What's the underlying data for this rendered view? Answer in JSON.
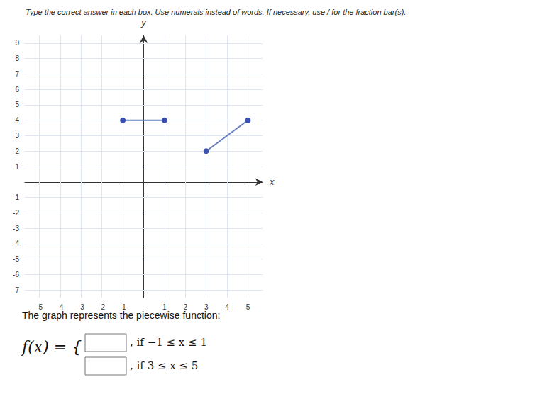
{
  "chart_data": {
    "type": "line",
    "title": "Type the correct answer in each box. Use numerals instead of words. If necessary, use / for the fraction bar(s).",
    "xlabel": "x",
    "ylabel": "y",
    "xlim": [
      -5.7,
      5.7
    ],
    "ylim": [
      -7.5,
      9.5
    ],
    "xticks": [
      -5,
      -4,
      -3,
      -2,
      -1,
      1,
      2,
      3,
      4,
      5
    ],
    "yticks": [
      -7,
      -6,
      -5,
      -4,
      -3,
      -2,
      -1,
      1,
      2,
      3,
      4,
      5,
      6,
      7,
      8,
      9
    ],
    "grid": true,
    "series": [
      {
        "x": [
          -1,
          1
        ],
        "values": [
          4,
          4
        ],
        "color": "#6680c0",
        "colors": [
          "#3a50b0",
          "#3a50b0"
        ],
        "marker": "circle",
        "line_style": "solid"
      },
      {
        "x": [
          3,
          5
        ],
        "values": [
          2,
          4
        ],
        "color": "#6680c0",
        "colors": [
          "#3a50b0",
          "#3a50b0"
        ],
        "marker": "circle",
        "line_style": "solid"
      }
    ],
    "annotations": [
      "The graph represents the piecewise function:",
      "f(x) = {",
      ", if −1 ≤ x ≤ 1",
      ", if 3 ≤ x ≤ 5"
    ]
  }
}
